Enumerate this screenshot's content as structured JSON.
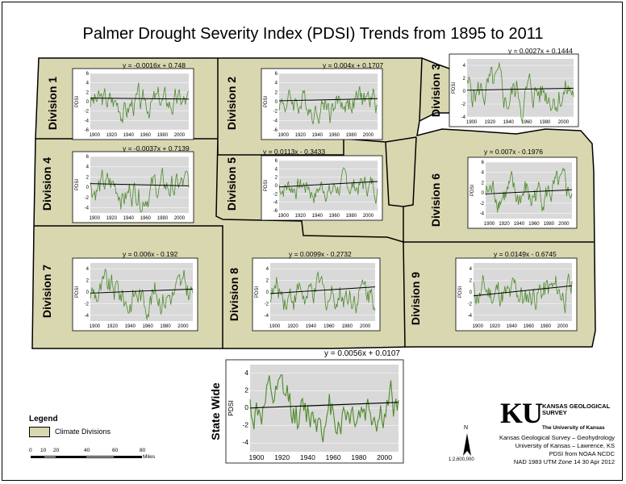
{
  "title": "Palmer Drought Severity Index (PDSI) Trends from 1895 to 2011",
  "colors": {
    "division_fill": "#d9d7b0",
    "line": "#4e8a2a",
    "plot_bg": "#d9d9d9",
    "trend": "#000000"
  },
  "axis_ylabel": "PDSI",
  "chart_data": [
    {
      "type": "line",
      "name_label": "Division 1",
      "equation": "y = -0.0016x + 0.748",
      "x_range": [
        1895,
        2011
      ],
      "xticks": [
        "1900",
        "1920",
        "1940",
        "1960",
        "1980",
        "2000"
      ],
      "yticks": [
        6,
        4,
        2,
        0,
        -2,
        -4,
        -6
      ],
      "ylim": [
        -6,
        6
      ],
      "trend": {
        "slope": -0.0016,
        "intercept": 0.748
      }
    },
    {
      "type": "line",
      "name_label": "Division 2",
      "equation": "y = 0.004x + 0.1707",
      "x_range": [
        1895,
        2011
      ],
      "xticks": [
        "1900",
        "1920",
        "1940",
        "1960",
        "1980",
        "2000"
      ],
      "yticks": [
        6,
        4,
        2,
        0,
        -2,
        -4,
        -6
      ],
      "ylim": [
        -6,
        6
      ],
      "trend": {
        "slope": 0.004,
        "intercept": 0.1707
      }
    },
    {
      "type": "line",
      "name_label": "Division 3",
      "equation": "y = 0.0027x + 0.1444",
      "x_range": [
        1895,
        2011
      ],
      "xticks": [
        "1900",
        "1920",
        "1940",
        "1960",
        "1980",
        "2000"
      ],
      "yticks": [
        4,
        2,
        0,
        -2,
        -4
      ],
      "ylim": [
        -4,
        5
      ],
      "trend": {
        "slope": 0.0027,
        "intercept": 0.1444
      }
    },
    {
      "type": "line",
      "name_label": "Division 4",
      "equation": "y = -0.0037x + 0.7139",
      "x_range": [
        1895,
        2011
      ],
      "xticks": [
        "1900",
        "1920",
        "1940",
        "1960",
        "1980",
        "2000"
      ],
      "yticks": [
        6,
        4,
        2,
        0,
        -2,
        -4
      ],
      "ylim": [
        -5,
        6
      ],
      "trend": {
        "slope": -0.0037,
        "intercept": 0.7139
      }
    },
    {
      "type": "line",
      "name_label": "Division 5",
      "equation": "y = 0.0113x - 0.3433",
      "x_range": [
        1895,
        2011
      ],
      "xticks": [
        "1900",
        "1920",
        "1940",
        "1960",
        "1980",
        "2000"
      ],
      "yticks": [
        6,
        4,
        2,
        0,
        -2,
        -4,
        -6
      ],
      "ylim": [
        -6,
        6
      ],
      "trend": {
        "slope": 0.0113,
        "intercept": -0.3433
      }
    },
    {
      "type": "line",
      "name_label": "Division 6",
      "equation": "y = 0.007x - 0.1976",
      "x_range": [
        1895,
        2011
      ],
      "xticks": [
        "1900",
        "1920",
        "1940",
        "1960",
        "1980",
        "2000"
      ],
      "yticks": [
        6,
        4,
        2,
        0,
        -2,
        -4
      ],
      "ylim": [
        -5,
        6
      ],
      "trend": {
        "slope": 0.007,
        "intercept": -0.1976
      }
    },
    {
      "type": "line",
      "name_label": "Division 7",
      "equation": "y = 0.006x - 0.192",
      "x_range": [
        1895,
        2011
      ],
      "xticks": [
        "1900",
        "1920",
        "1940",
        "1960",
        "1980",
        "2000"
      ],
      "yticks": [
        4,
        2,
        0,
        -2,
        -4
      ],
      "ylim": [
        -5,
        5
      ],
      "trend": {
        "slope": 0.006,
        "intercept": -0.192
      }
    },
    {
      "type": "line",
      "name_label": "Division 8",
      "equation": "y = 0.0099x - 0.2732",
      "x_range": [
        1895,
        2011
      ],
      "xticks": [
        "1900",
        "1920",
        "1940",
        "1960",
        "1980",
        "2000"
      ],
      "yticks": [
        4,
        2,
        0,
        -2,
        -4
      ],
      "ylim": [
        -5,
        5
      ],
      "trend": {
        "slope": 0.0099,
        "intercept": -0.2732
      }
    },
    {
      "type": "line",
      "name_label": "Division 9",
      "equation": "y = 0.0149x - 0.6745",
      "x_range": [
        1895,
        2011
      ],
      "xticks": [
        "1900",
        "1920",
        "1940",
        "1960",
        "1980",
        "2000"
      ],
      "yticks": [
        4,
        2,
        0,
        -2,
        -4
      ],
      "ylim": [
        -5,
        5
      ],
      "trend": {
        "slope": 0.0149,
        "intercept": -0.6745
      }
    },
    {
      "type": "line",
      "name_label": "State Wide",
      "equation": "y = 0.0056x + 0.0107",
      "x_range": [
        1895,
        2011
      ],
      "xticks": [
        "1900",
        "1920",
        "1940",
        "1960",
        "1980",
        "2000"
      ],
      "yticks": [
        4,
        2,
        0,
        -2,
        -4
      ],
      "ylim": [
        -5,
        5
      ],
      "trend": {
        "slope": 0.0056,
        "intercept": 0.0107
      }
    }
  ],
  "legend": {
    "title": "Legend",
    "item": "Climate Divisions"
  },
  "scalebar": {
    "ticks": [
      "0",
      "10",
      "20",
      "40",
      "60",
      "80"
    ],
    "unit": "Miles"
  },
  "north": {
    "letter": "N",
    "scale": "1:2,600,000"
  },
  "credits": {
    "logo": "KU",
    "org_name": "KANSAS GEOLOGICAL SURVEY",
    "univ": "The University of Kansas",
    "lines": [
      "Kansas Geological Survey – Geohydrology",
      "University of Kansas – Lawrence, KS",
      "PDSI from NOAA NCDC",
      "NAD 1983 UTM Zone 14   30 Apr 2012"
    ]
  }
}
